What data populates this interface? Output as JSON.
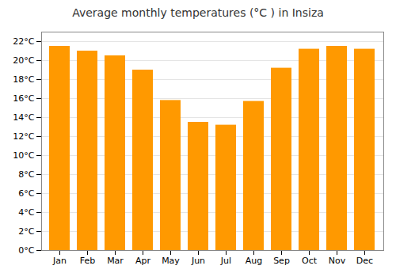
{
  "chart_data": {
    "type": "bar",
    "title": "Average monthly temperatures (°C ) in Insiza",
    "categories": [
      "Jan",
      "Feb",
      "Mar",
      "Apr",
      "May",
      "Jun",
      "Jul",
      "Aug",
      "Sep",
      "Oct",
      "Nov",
      "Dec"
    ],
    "values": [
      21.5,
      21.0,
      20.5,
      19.0,
      15.8,
      13.5,
      13.2,
      15.7,
      19.2,
      21.2,
      21.5,
      21.2
    ],
    "color": "#FF9900",
    "ylim": [
      0,
      23
    ],
    "yticks": [
      {
        "value": 0,
        "label": "0°C"
      },
      {
        "value": 2,
        "label": "2°C"
      },
      {
        "value": 4,
        "label": "4°C"
      },
      {
        "value": 6,
        "label": "6°C"
      },
      {
        "value": 8,
        "label": "8°C"
      },
      {
        "value": 10,
        "label": "10°C"
      },
      {
        "value": 12,
        "label": "12°C"
      },
      {
        "value": 14,
        "label": "14°C"
      },
      {
        "value": 16,
        "label": "16°C"
      },
      {
        "value": 18,
        "label": "18°C"
      },
      {
        "value": 20,
        "label": "20°C"
      },
      {
        "value": 22,
        "label": "22°C"
      }
    ],
    "grid": true
  }
}
